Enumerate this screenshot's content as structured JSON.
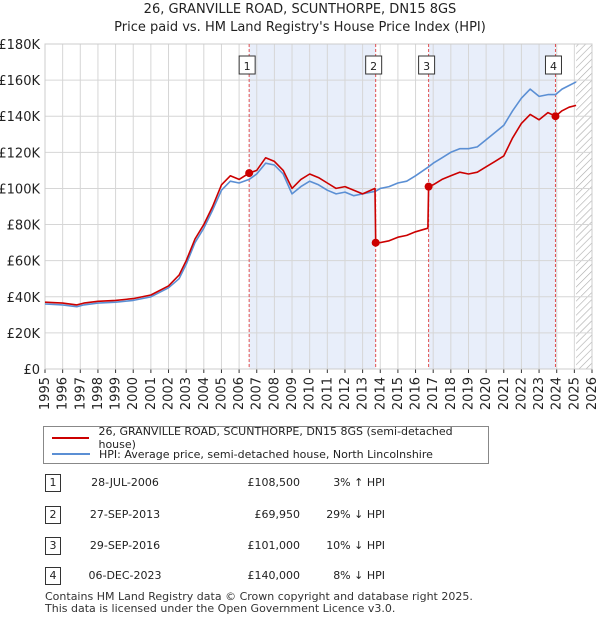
{
  "title_line1": "26, GRANVILLE ROAD, SCUNTHORPE, DN15 8GS",
  "title_line2": "Price paid vs. HM Land Registry's House Price Index (HPI)",
  "legend": {
    "property": "26, GRANVILLE ROAD, SCUNTHORPE, DN15 8GS (semi-detached house)",
    "hpi": "HPI: Average price, semi-detached house, North Lincolnshire"
  },
  "colors": {
    "property": "#cc0000",
    "hpi": "#5b8fd4",
    "shade": "#e8eefa",
    "grid": "#d6d6d6",
    "marker_line": "#e05050"
  },
  "transactions": [
    {
      "num": "1",
      "date": "28-JUL-2006",
      "price": "£108,500",
      "hpi": "3% ↑ HPI"
    },
    {
      "num": "2",
      "date": "27-SEP-2013",
      "price": "£69,950",
      "hpi": "29% ↓ HPI"
    },
    {
      "num": "3",
      "date": "29-SEP-2016",
      "price": "£101,000",
      "hpi": "10% ↓ HPI"
    },
    {
      "num": "4",
      "date": "06-DEC-2023",
      "price": "£140,000",
      "hpi": "8% ↓ HPI"
    }
  ],
  "footer": {
    "line1": "Contains HM Land Registry data © Crown copyright and database right 2025.",
    "line2": "This data is licensed under the Open Government Licence v3.0."
  },
  "chart_data": {
    "type": "line",
    "xlim": [
      1995,
      2026
    ],
    "ylim": [
      0,
      180000
    ],
    "x_ticks": [
      "1995",
      "1996",
      "1997",
      "1998",
      "1999",
      "2000",
      "2001",
      "2002",
      "2003",
      "2004",
      "2005",
      "2006",
      "2007",
      "2008",
      "2009",
      "2010",
      "2011",
      "2012",
      "2013",
      "2014",
      "2015",
      "2016",
      "2017",
      "2018",
      "2019",
      "2020",
      "2021",
      "2022",
      "2023",
      "2024",
      "2025",
      "2026"
    ],
    "y_ticks": [
      "£0",
      "£20K",
      "£40K",
      "£60K",
      "£80K",
      "£100K",
      "£120K",
      "£140K",
      "£160K",
      "£180K"
    ],
    "grid": true,
    "future_hatch_from": 2025.1,
    "sales": [
      {
        "label": "1",
        "x": 2006.57,
        "y": 108500
      },
      {
        "label": "2",
        "x": 2013.74,
        "y": 69950
      },
      {
        "label": "3",
        "x": 2016.74,
        "y": 101000
      },
      {
        "label": "4",
        "x": 2023.93,
        "y": 140000
      }
    ],
    "shaded_ranges": [
      [
        2006.57,
        2013.74
      ],
      [
        2016.74,
        2023.93
      ]
    ],
    "series": [
      {
        "name": "26, GRANVILLE ROAD, SCUNTHORPE, DN15 8GS (semi-detached house)",
        "points": [
          [
            1995,
            37000
          ],
          [
            1996,
            36500
          ],
          [
            1996.8,
            35500
          ],
          [
            1997.2,
            36500
          ],
          [
            1998,
            37500
          ],
          [
            1999,
            38000
          ],
          [
            2000,
            39000
          ],
          [
            2001,
            41000
          ],
          [
            2002,
            46000
          ],
          [
            2002.6,
            52000
          ],
          [
            2003,
            60000
          ],
          [
            2003.5,
            72000
          ],
          [
            2004,
            80000
          ],
          [
            2004.5,
            90000
          ],
          [
            2005,
            102000
          ],
          [
            2005.5,
            107000
          ],
          [
            2006,
            105000
          ],
          [
            2006.57,
            108500
          ],
          [
            2007,
            110000
          ],
          [
            2007.5,
            117000
          ],
          [
            2008,
            115000
          ],
          [
            2008.5,
            110000
          ],
          [
            2009,
            100000
          ],
          [
            2009.5,
            105000
          ],
          [
            2010,
            108000
          ],
          [
            2010.5,
            106000
          ],
          [
            2011,
            103000
          ],
          [
            2011.5,
            100000
          ],
          [
            2012,
            101000
          ],
          [
            2012.5,
            99000
          ],
          [
            2013,
            97000
          ],
          [
            2013.7,
            100000
          ],
          [
            2013.74,
            69950
          ],
          [
            2014,
            70000
          ],
          [
            2014.5,
            71000
          ],
          [
            2015,
            73000
          ],
          [
            2015.5,
            74000
          ],
          [
            2016,
            76000
          ],
          [
            2016.7,
            78000
          ],
          [
            2016.74,
            101000
          ],
          [
            2017,
            102000
          ],
          [
            2017.5,
            105000
          ],
          [
            2018,
            107000
          ],
          [
            2018.5,
            109000
          ],
          [
            2019,
            108000
          ],
          [
            2019.5,
            109000
          ],
          [
            2020,
            112000
          ],
          [
            2020.5,
            115000
          ],
          [
            2021,
            118000
          ],
          [
            2021.5,
            128000
          ],
          [
            2022,
            136000
          ],
          [
            2022.5,
            141000
          ],
          [
            2023,
            138000
          ],
          [
            2023.5,
            142000
          ],
          [
            2023.93,
            140000
          ],
          [
            2024.3,
            143000
          ],
          [
            2024.7,
            145000
          ],
          [
            2025.1,
            146000
          ]
        ]
      },
      {
        "name": "HPI: Average price, semi-detached house, North Lincolnshire",
        "points": [
          [
            1995,
            36000
          ],
          [
            1996,
            35500
          ],
          [
            1996.8,
            34500
          ],
          [
            1997.2,
            35500
          ],
          [
            1998,
            36500
          ],
          [
            1999,
            37000
          ],
          [
            2000,
            38000
          ],
          [
            2001,
            40000
          ],
          [
            2002,
            45000
          ],
          [
            2002.6,
            50000
          ],
          [
            2003,
            58000
          ],
          [
            2003.5,
            70000
          ],
          [
            2004,
            78000
          ],
          [
            2004.5,
            88000
          ],
          [
            2005,
            99000
          ],
          [
            2005.5,
            104000
          ],
          [
            2006,
            103000
          ],
          [
            2006.57,
            105000
          ],
          [
            2007,
            108000
          ],
          [
            2007.5,
            114000
          ],
          [
            2008,
            113000
          ],
          [
            2008.5,
            108000
          ],
          [
            2009,
            97000
          ],
          [
            2009.5,
            101000
          ],
          [
            2010,
            104000
          ],
          [
            2010.5,
            102000
          ],
          [
            2011,
            99000
          ],
          [
            2011.5,
            97000
          ],
          [
            2012,
            98000
          ],
          [
            2012.5,
            96000
          ],
          [
            2013,
            97000
          ],
          [
            2013.74,
            98500
          ],
          [
            2014,
            100000
          ],
          [
            2014.5,
            101000
          ],
          [
            2015,
            103000
          ],
          [
            2015.5,
            104000
          ],
          [
            2016,
            107000
          ],
          [
            2016.74,
            112000
          ],
          [
            2017,
            114000
          ],
          [
            2017.5,
            117000
          ],
          [
            2018,
            120000
          ],
          [
            2018.5,
            122000
          ],
          [
            2019,
            122000
          ],
          [
            2019.5,
            123000
          ],
          [
            2020,
            127000
          ],
          [
            2020.5,
            131000
          ],
          [
            2021,
            135000
          ],
          [
            2021.5,
            143000
          ],
          [
            2022,
            150000
          ],
          [
            2022.5,
            155000
          ],
          [
            2023,
            151000
          ],
          [
            2023.5,
            152000
          ],
          [
            2023.93,
            152000
          ],
          [
            2024.3,
            155000
          ],
          [
            2024.7,
            157000
          ],
          [
            2025.1,
            159000
          ]
        ]
      }
    ]
  }
}
